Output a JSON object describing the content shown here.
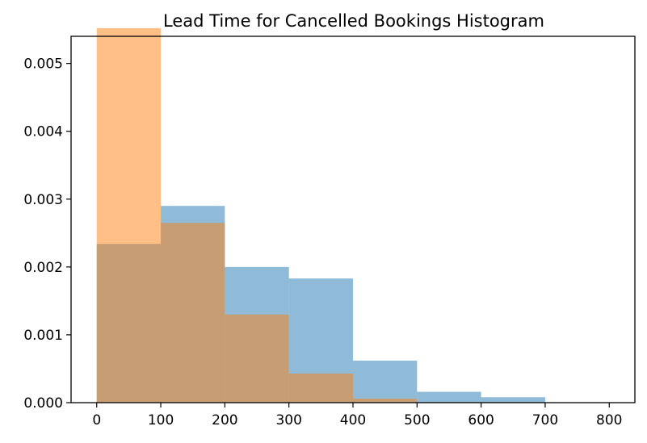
{
  "chart_data": {
    "type": "histogram",
    "title": "Lead Time for Cancelled Bookings Histogram",
    "xlabel": "",
    "ylabel": "",
    "xlim": [
      -40,
      840
    ],
    "ylim": [
      0,
      0.0054
    ],
    "xticks": [
      0,
      100,
      200,
      300,
      400,
      500,
      600,
      700,
      800
    ],
    "yticks": [
      0.0,
      0.001,
      0.002,
      0.003,
      0.004,
      0.005
    ],
    "xtick_labels": [
      "0",
      "100",
      "200",
      "300",
      "400",
      "500",
      "600",
      "700",
      "800"
    ],
    "ytick_labels": [
      "0.000",
      "0.001",
      "0.002",
      "0.003",
      "0.004",
      "0.005"
    ],
    "bin_edges": [
      0,
      100,
      200,
      300,
      400,
      500,
      600,
      700,
      800
    ],
    "grid": false,
    "legend": "none",
    "series": [
      {
        "color": "#1f77b4",
        "opacity": 0.5,
        "values": [
          0.00234,
          0.0029,
          0.002,
          0.00183,
          0.00062,
          0.00016,
          8e-05,
          0.0
        ]
      },
      {
        "color": "#ff7f0e",
        "opacity": 0.5,
        "values": [
          0.00552,
          0.00265,
          0.0013,
          0.00043,
          6e-05,
          0.0,
          0.0,
          0.0
        ]
      }
    ]
  }
}
